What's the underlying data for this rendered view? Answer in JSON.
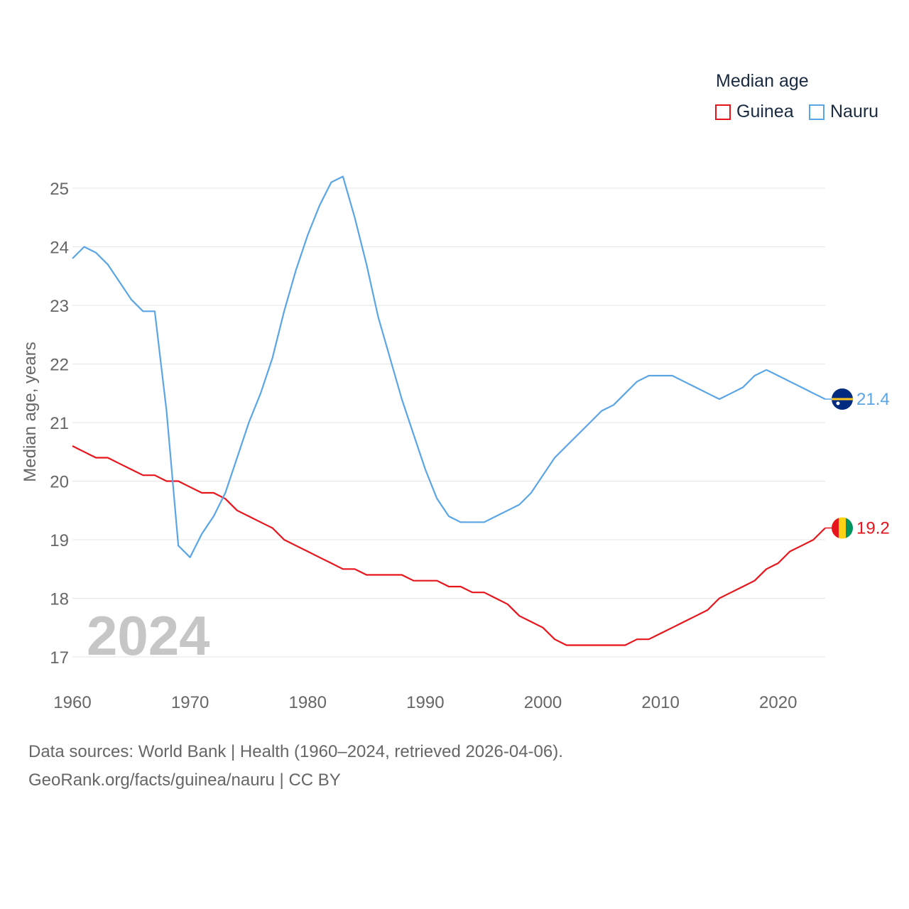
{
  "chart_data": {
    "type": "line",
    "title": "Median age",
    "ylabel": "Median age, years",
    "xlabel": "",
    "xlim": [
      1960,
      2024
    ],
    "ylim": [
      16.5,
      25.5
    ],
    "x_ticks": [
      1960,
      1970,
      1980,
      1990,
      2000,
      2010,
      2020
    ],
    "y_ticks": [
      17,
      18,
      19,
      20,
      21,
      22,
      23,
      24,
      25
    ],
    "grid": true,
    "legend_position": "top-right",
    "year_label": "2024",
    "x": [
      1960,
      1961,
      1962,
      1963,
      1964,
      1965,
      1966,
      1967,
      1968,
      1969,
      1970,
      1971,
      1972,
      1973,
      1974,
      1975,
      1976,
      1977,
      1978,
      1979,
      1980,
      1981,
      1982,
      1983,
      1984,
      1985,
      1986,
      1987,
      1988,
      1989,
      1990,
      1991,
      1992,
      1993,
      1994,
      1995,
      1996,
      1997,
      1998,
      1999,
      2000,
      2001,
      2002,
      2003,
      2004,
      2005,
      2006,
      2007,
      2008,
      2009,
      2010,
      2011,
      2012,
      2013,
      2014,
      2015,
      2016,
      2017,
      2018,
      2019,
      2020,
      2021,
      2022,
      2023,
      2024
    ],
    "series": [
      {
        "name": "Guinea",
        "color": "#e8141c",
        "end_label": "19.2",
        "values": [
          20.6,
          20.5,
          20.4,
          20.4,
          20.3,
          20.2,
          20.1,
          20.1,
          20.0,
          20.0,
          19.9,
          19.8,
          19.8,
          19.7,
          19.5,
          19.4,
          19.3,
          19.2,
          19.0,
          18.9,
          18.8,
          18.7,
          18.6,
          18.5,
          18.5,
          18.4,
          18.4,
          18.4,
          18.4,
          18.3,
          18.3,
          18.3,
          18.2,
          18.2,
          18.1,
          18.1,
          18.0,
          17.9,
          17.7,
          17.6,
          17.5,
          17.3,
          17.2,
          17.2,
          17.2,
          17.2,
          17.2,
          17.2,
          17.3,
          17.3,
          17.4,
          17.5,
          17.6,
          17.7,
          17.8,
          18.0,
          18.1,
          18.2,
          18.3,
          18.5,
          18.6,
          18.8,
          18.9,
          19.0,
          19.2
        ]
      },
      {
        "name": "Nauru",
        "color": "#5aa5e6",
        "end_label": "21.4",
        "values": [
          23.8,
          24.0,
          23.9,
          23.7,
          23.4,
          23.1,
          22.9,
          22.9,
          21.2,
          18.9,
          18.7,
          19.1,
          19.4,
          19.8,
          20.4,
          21.0,
          21.5,
          22.1,
          22.9,
          23.6,
          24.2,
          24.7,
          25.1,
          25.2,
          24.5,
          23.7,
          22.8,
          22.1,
          21.4,
          20.8,
          20.2,
          19.7,
          19.4,
          19.3,
          19.3,
          19.3,
          19.4,
          19.5,
          19.6,
          19.8,
          20.1,
          20.4,
          20.6,
          20.8,
          21.0,
          21.2,
          21.3,
          21.5,
          21.7,
          21.8,
          21.8,
          21.8,
          21.7,
          21.6,
          21.5,
          21.4,
          21.5,
          21.6,
          21.8,
          21.9,
          21.8,
          21.7,
          21.6,
          21.5,
          21.4
        ]
      }
    ]
  },
  "footer": {
    "source_line": "Data sources: World Bank | Health (1960–2024, retrieved 2026-04-06).",
    "url_line": "GeoRank.org/facts/guinea/nauru | CC BY"
  },
  "flags": {
    "guinea": [
      "#e8141c",
      "#fcd116",
      "#009460"
    ],
    "nauru": {
      "blue": "#002b7f",
      "stripe": "#ffc61e",
      "star": "#ffffff"
    }
  }
}
